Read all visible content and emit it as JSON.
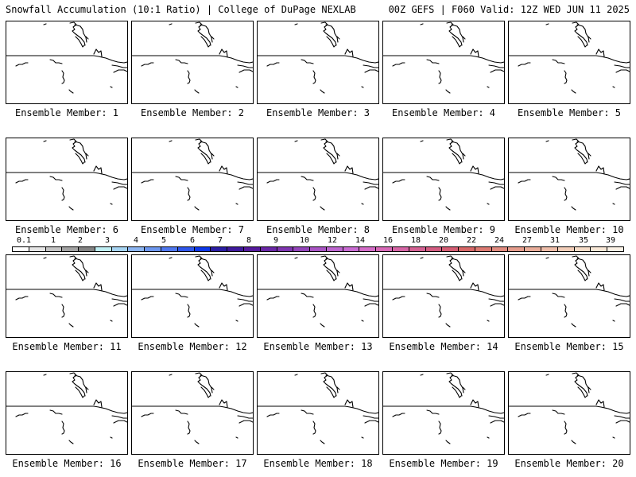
{
  "header": {
    "title_left": "Snowfall Accumulation (10:1 Ratio) | College of DuPage NEXLAB",
    "title_right": "00Z GEFS | F060 Valid: 12Z WED JUN 11 2025"
  },
  "colorbar": {
    "labels": [
      "0.1",
      "1",
      "2",
      "3",
      "4",
      "5",
      "6",
      "7",
      "8",
      "9",
      "10",
      "12",
      "14",
      "16",
      "18",
      "20",
      "22",
      "24",
      "27",
      "31",
      "35",
      "39"
    ],
    "colors": [
      "#ffffff",
      "#e6e6e6",
      "#c4c4c4",
      "#a3a3a3",
      "#838383",
      "#bfeef3",
      "#a6d4f2",
      "#8cb5f1",
      "#6d97ef",
      "#4f77ee",
      "#3057ea",
      "#0e38e8",
      "#2b1ea3",
      "#3f1a9c",
      "#551a9c",
      "#6a27a6",
      "#7f35b0",
      "#9445ba",
      "#a955c4",
      "#bd66cf",
      "#c96bd2",
      "#d36cc7",
      "#d869b7",
      "#d665a5",
      "#d46193",
      "#d35d82",
      "#d45d73",
      "#d76868",
      "#dc7a72",
      "#e08b7f",
      "#e59c8c",
      "#e9ad9a",
      "#eebda9",
      "#f2cdb8",
      "#f6dcc8",
      "#f9e8d7",
      "#fcf2e6"
    ]
  },
  "members": [
    {
      "label": "Ensemble Member: 1"
    },
    {
      "label": "Ensemble Member: 2"
    },
    {
      "label": "Ensemble Member: 3"
    },
    {
      "label": "Ensemble Member: 4"
    },
    {
      "label": "Ensemble Member: 5"
    },
    {
      "label": "Ensemble Member: 6"
    },
    {
      "label": "Ensemble Member: 7"
    },
    {
      "label": "Ensemble Member: 8"
    },
    {
      "label": "Ensemble Member: 9"
    },
    {
      "label": "Ensemble Member: 10"
    },
    {
      "label": "Ensemble Member: 11"
    },
    {
      "label": "Ensemble Member: 12"
    },
    {
      "label": "Ensemble Member: 13"
    },
    {
      "label": "Ensemble Member: 14"
    },
    {
      "label": "Ensemble Member: 15"
    },
    {
      "label": "Ensemble Member: 16"
    },
    {
      "label": "Ensemble Member: 17"
    },
    {
      "label": "Ensemble Member: 18"
    },
    {
      "label": "Ensemble Member: 19"
    },
    {
      "label": "Ensemble Member: 20"
    }
  ]
}
